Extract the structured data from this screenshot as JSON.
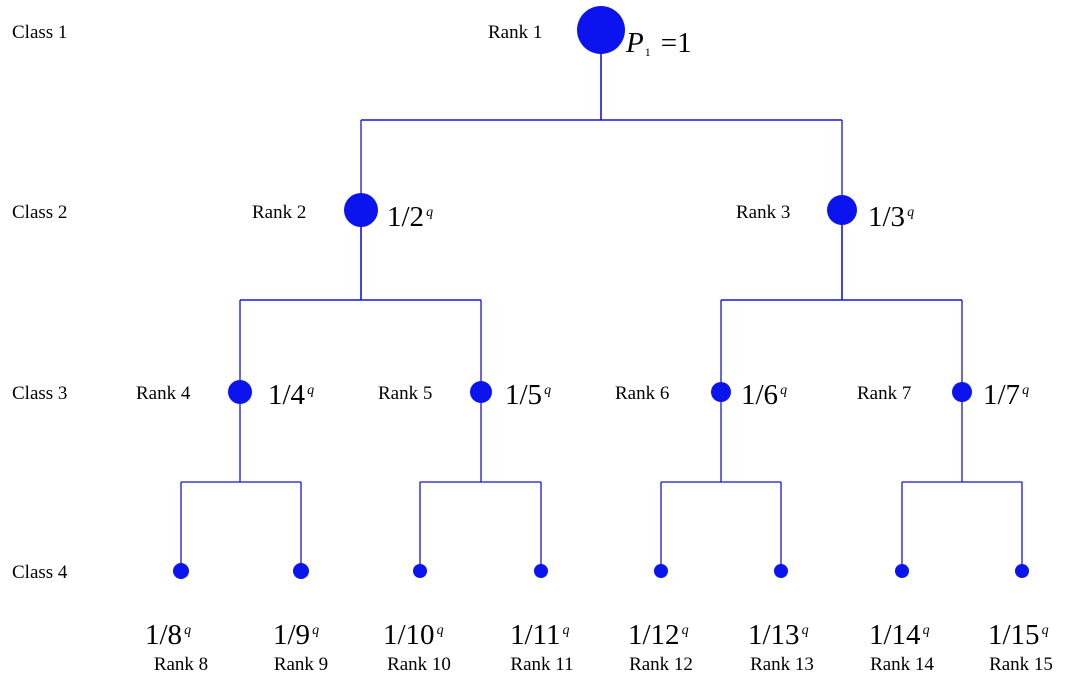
{
  "classes": [
    "Class 1",
    "Class 2",
    "Class 3",
    "Class 4"
  ],
  "nodes": [
    {
      "rank_label": "Rank 1",
      "prob": "=1",
      "prob_var": "P",
      "prob_sub": "1",
      "sup": ""
    },
    {
      "rank_label": "Rank 2",
      "prob": "1/2",
      "sup": "q"
    },
    {
      "rank_label": "Rank 3",
      "prob": "1/3",
      "sup": "q"
    },
    {
      "rank_label": "Rank 4",
      "prob": "1/4",
      "sup": "q"
    },
    {
      "rank_label": "Rank 5",
      "prob": "1/5",
      "sup": "q"
    },
    {
      "rank_label": "Rank 6",
      "prob": "1/6",
      "sup": "q"
    },
    {
      "rank_label": "Rank 7",
      "prob": "1/7",
      "sup": "q"
    },
    {
      "rank_label": "Rank 8",
      "prob": "1/8",
      "sup": "q"
    },
    {
      "rank_label": "Rank 9",
      "prob": "1/9",
      "sup": "q"
    },
    {
      "rank_label": "Rank 10",
      "prob": "1/10",
      "sup": "q"
    },
    {
      "rank_label": "Rank 11",
      "prob": "1/11",
      "sup": "q"
    },
    {
      "rank_label": "Rank 12",
      "prob": "1/12",
      "sup": "q"
    },
    {
      "rank_label": "Rank 13",
      "prob": "1/13",
      "sup": "q"
    },
    {
      "rank_label": "Rank 14",
      "prob": "1/14",
      "sup": "q"
    },
    {
      "rank_label": "Rank 15",
      "prob": "1/15",
      "sup": "q"
    }
  ],
  "edges": [
    [
      1,
      2
    ],
    [
      1,
      3
    ],
    [
      2,
      4
    ],
    [
      2,
      5
    ],
    [
      3,
      6
    ],
    [
      3,
      7
    ],
    [
      4,
      8
    ],
    [
      4,
      9
    ],
    [
      5,
      10
    ],
    [
      5,
      11
    ],
    [
      6,
      12
    ],
    [
      6,
      13
    ],
    [
      7,
      14
    ],
    [
      7,
      15
    ]
  ],
  "colors": {
    "node": "#0b14ee",
    "edge": "#1515d8"
  }
}
